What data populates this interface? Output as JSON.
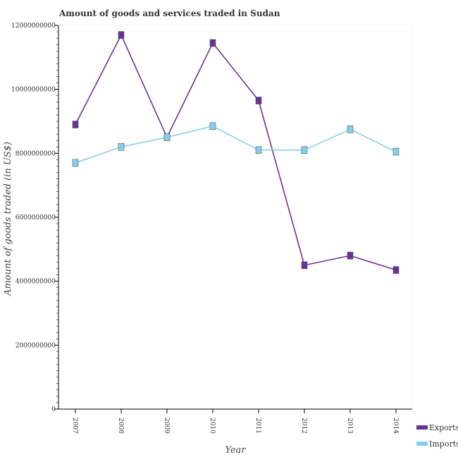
{
  "chart_data": {
    "type": "line",
    "title": "Amount of goods and services traded in Sudan",
    "xlabel": "Year",
    "ylabel": "Amount of goods traded (in US$)",
    "categories": [
      "2007",
      "2008",
      "2009",
      "2010",
      "2011",
      "2012",
      "2013",
      "2014"
    ],
    "ylim": [
      0,
      12000000000
    ],
    "yticks": [
      0,
      2000000000,
      4000000000,
      6000000000,
      8000000000,
      10000000000,
      12000000000
    ],
    "ytick_labels": [
      "0",
      "2000000000",
      "4000000000",
      "6000000000",
      "8000000000",
      "10000000000",
      "12000000000"
    ],
    "legend_position": "bottom-right",
    "series": [
      {
        "name": "Exports",
        "color": "#663399",
        "marker_fill": "#663399",
        "values": [
          8900000000,
          11700000000,
          8500000000,
          11450000000,
          9650000000,
          4500000000,
          4800000000,
          4350000000
        ]
      },
      {
        "name": "Imports",
        "color": "#87ceeb",
        "marker_fill": "#87ceeb",
        "values": [
          7700000000,
          8200000000,
          8500000000,
          8850000000,
          8100000000,
          8100000000,
          8750000000,
          8050000000
        ]
      }
    ]
  }
}
